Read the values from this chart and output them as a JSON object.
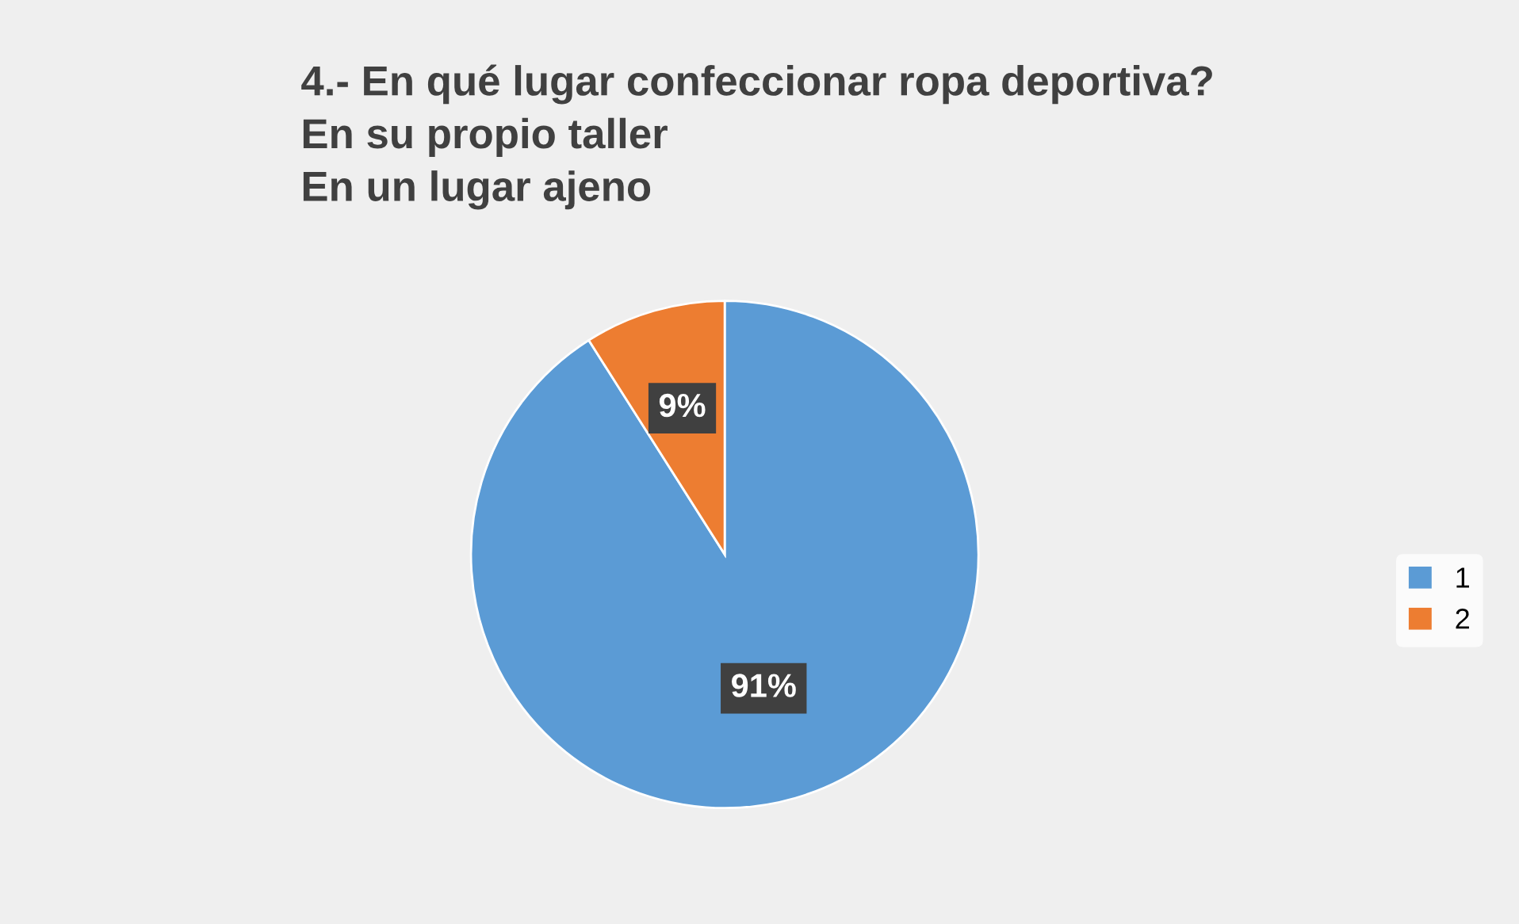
{
  "chart_data": {
    "type": "pie",
    "title": "4.- En qué lugar confeccionar ropa deportiva?\nEn su propio taller\nEn un lugar ajeno",
    "categories": [
      "1",
      "2"
    ],
    "values": [
      91,
      9
    ],
    "colors": [
      "#5b9bd5",
      "#ed7d31"
    ],
    "value_labels": [
      "91%",
      "9%"
    ],
    "legend": "right"
  }
}
